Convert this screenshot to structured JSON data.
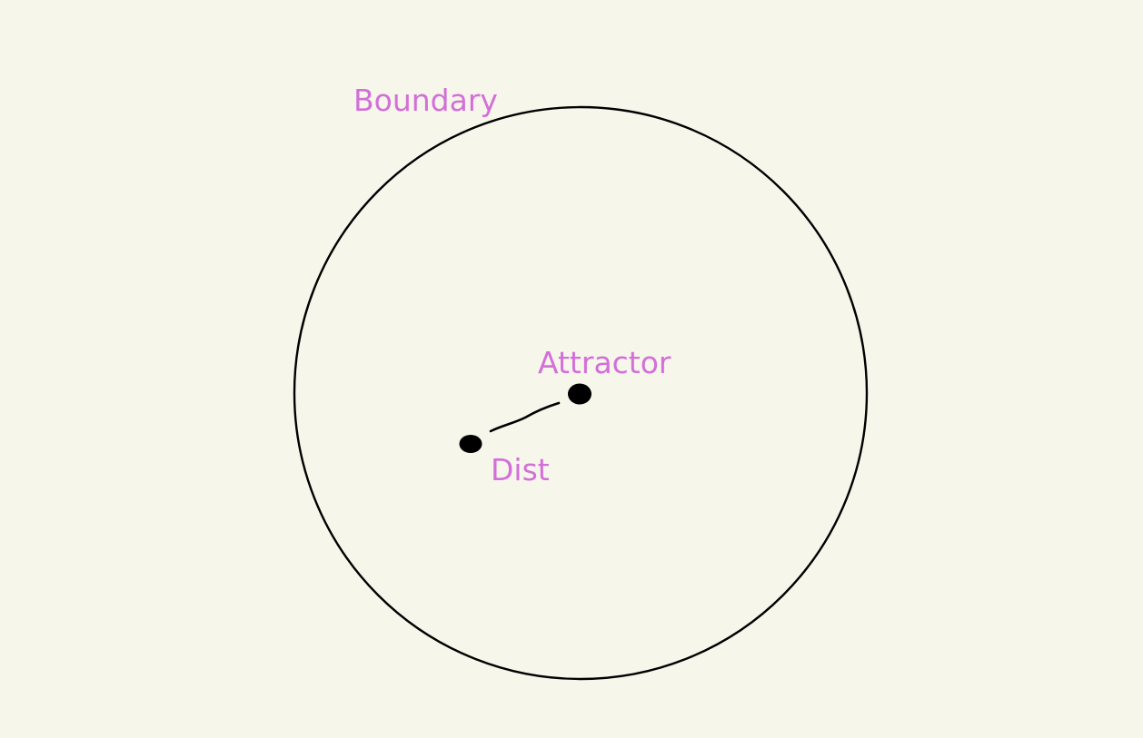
{
  "colors": {
    "background": "#f7f6ea",
    "stroke": "#000000",
    "label": "#d36fd9"
  },
  "labels": {
    "boundary": "Boundary",
    "attractor": "Attractor",
    "dist": "Dist"
  }
}
